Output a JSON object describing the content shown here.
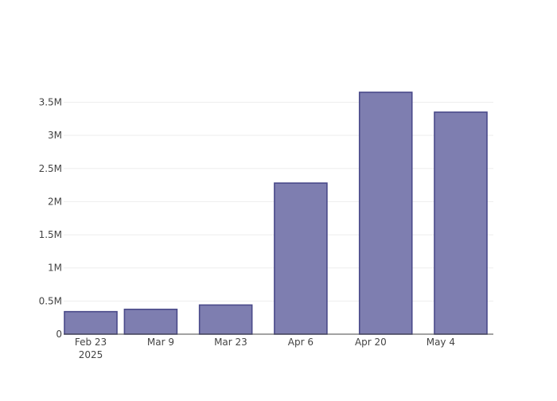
{
  "chart_data": {
    "type": "bar",
    "x_dates": [
      "2025-02-23",
      "2025-03-07",
      "2025-03-22",
      "2025-04-06",
      "2025-04-23",
      "2025-05-08"
    ],
    "x_tick_labels": [
      "Feb 23",
      "Mar 9",
      "Mar 23",
      "Apr 6",
      "Apr 20",
      "May 4"
    ],
    "x_tick_dates": [
      "2025-02-23",
      "2025-03-09",
      "2025-03-23",
      "2025-04-06",
      "2025-04-20",
      "2025-05-04"
    ],
    "x_year_label": "2025",
    "values": [
      340000,
      375000,
      440000,
      2280000,
      3650000,
      3350000
    ],
    "ylim": [
      0,
      3650000
    ],
    "y_ticks": [
      0,
      500000,
      1000000,
      1500000,
      2000000,
      2500000,
      3000000,
      3500000
    ],
    "y_tick_labels": [
      "0",
      "0.5M",
      "1M",
      "1.5M",
      "2M",
      "2.5M",
      "3M",
      "3.5M"
    ],
    "grid": true,
    "legend": "none",
    "bar_fill": "#7e7eb0",
    "bar_stroke": "#4a4a8a",
    "gridline_color": "#eeeeee",
    "axis_color": "#444444"
  }
}
